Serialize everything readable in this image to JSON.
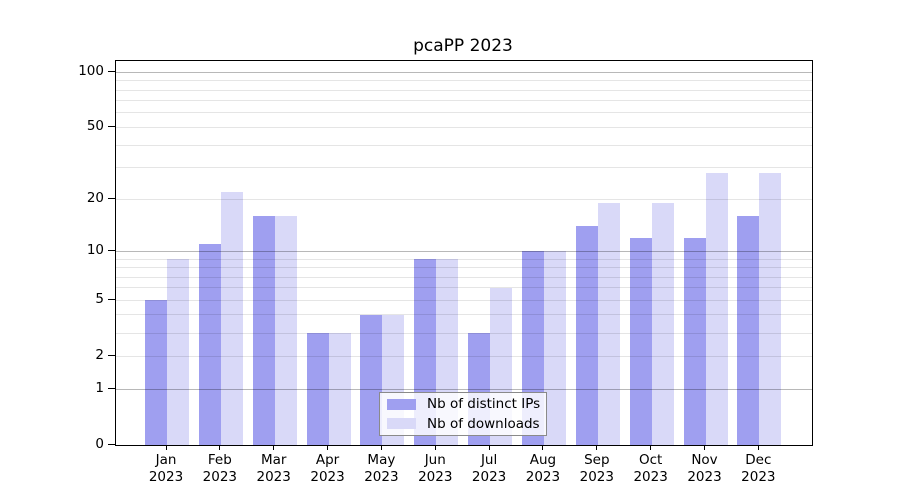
{
  "title": "pcaPP 2023",
  "chart_data": {
    "type": "bar",
    "title": "pcaPP 2023",
    "categories": [
      "Jan",
      "Feb",
      "Mar",
      "Apr",
      "May",
      "Jun",
      "Jul",
      "Aug",
      "Sep",
      "Oct",
      "Nov",
      "Dec"
    ],
    "category_year": "2023",
    "series": [
      {
        "name": "Nb of distinct IPs",
        "color": "#9f9ff0",
        "values": [
          5,
          11,
          16,
          3,
          4,
          9,
          3,
          10,
          14,
          12,
          12,
          16
        ]
      },
      {
        "name": "Nb of downloads",
        "color": "#d9d9f8",
        "values": [
          9,
          22,
          16,
          3,
          4,
          9,
          6,
          10,
          19,
          19,
          28,
          28
        ]
      }
    ],
    "xlabel": "",
    "ylabel": "",
    "y_scale": "log10(1+v)",
    "y_ticks": [
      100,
      50,
      20,
      10,
      5,
      2,
      1,
      0
    ],
    "y_grid_minor": [
      2,
      3,
      4,
      5,
      6,
      7,
      8,
      9,
      20,
      30,
      40,
      50,
      60,
      70,
      80,
      90
    ],
    "y_grid_major": [
      1,
      10,
      100
    ],
    "ylim": [
      0,
      114
    ],
    "grid": true,
    "legend_position": "bottom-center-inside"
  },
  "legend": {
    "items": [
      {
        "label": "Nb of distinct IPs"
      },
      {
        "label": "Nb of downloads"
      }
    ]
  },
  "colors": {
    "background": "#ffffff",
    "axis": "#000000",
    "grid_minor": "rgba(0,0,0,0.10)",
    "grid_major": "rgba(0,0,0,0.28)"
  }
}
